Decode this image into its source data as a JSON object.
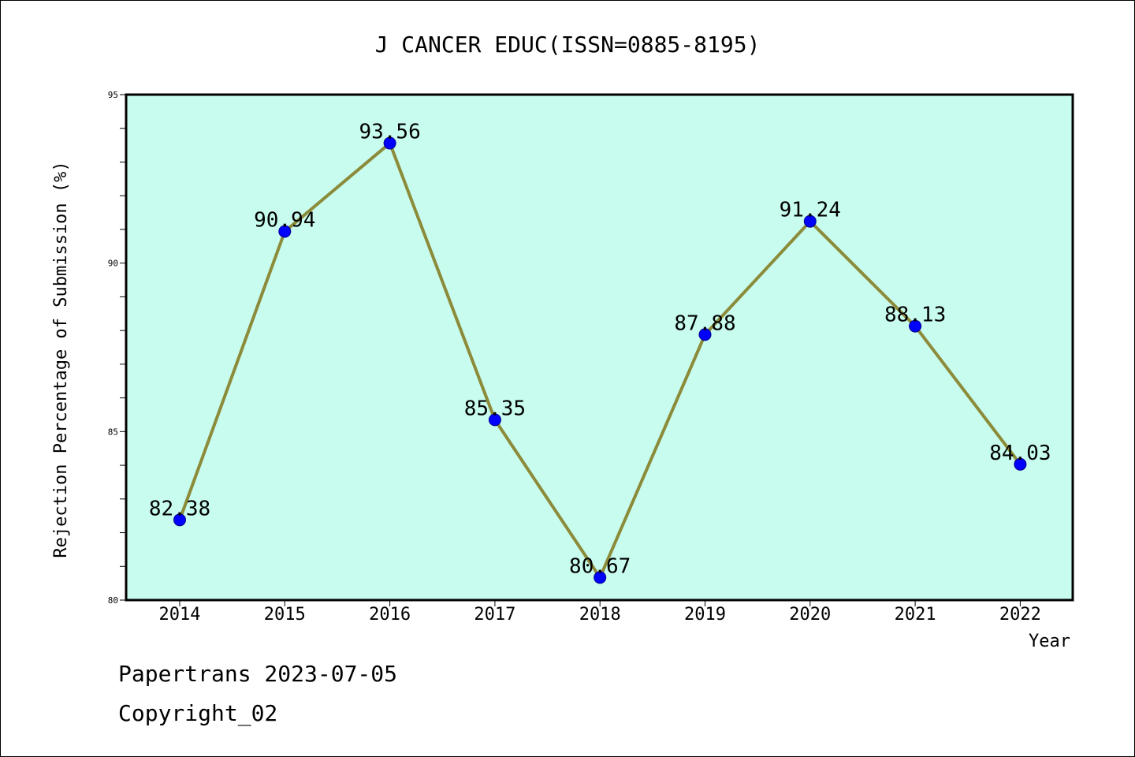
{
  "chart_data": {
    "type": "line",
    "title": "J CANCER EDUC(ISSN=0885-8195)",
    "xlabel": "Year",
    "ylabel": "Rejection Percentage of Submission (%)",
    "categories": [
      "2014",
      "2015",
      "2016",
      "2017",
      "2018",
      "2019",
      "2020",
      "2021",
      "2022"
    ],
    "series": [
      {
        "values": [
          82.38,
          90.94,
          93.56,
          85.35,
          80.67,
          87.88,
          91.24,
          88.13,
          84.03
        ],
        "labels": [
          "82.38",
          "90.94",
          "93.56",
          "85.35",
          "80.67",
          "87.88",
          "91.24",
          "88.13",
          "84.03"
        ],
        "line_color": "#8b8b3a",
        "marker_color": "#0000ff"
      }
    ],
    "ylim": [
      80,
      95
    ],
    "yticks": [
      "80",
      "85",
      "90",
      "95"
    ],
    "plot_background": "#c8fcee",
    "grid": false,
    "legend": "none"
  },
  "footer": {
    "line1": "Papertrans 2023-07-05",
    "line2": "Copyright_02"
  }
}
